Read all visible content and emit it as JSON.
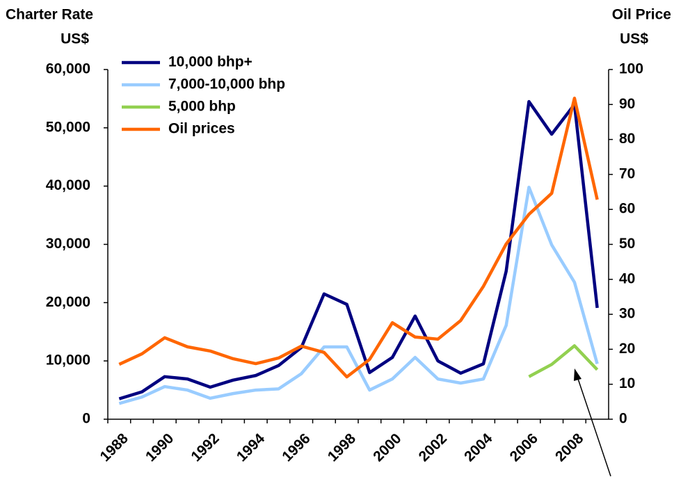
{
  "chart_data": {
    "type": "line",
    "y_title": [
      "Charter Rate",
      "US$"
    ],
    "y2_title": [
      "Oil Price",
      "US$"
    ],
    "categories": [
      "1988",
      null,
      "1990",
      null,
      "1992",
      null,
      "1994",
      null,
      "1996",
      null,
      "1998",
      null,
      "2000",
      null,
      "2002",
      null,
      "2004",
      null,
      "2006",
      null,
      "2008",
      null
    ],
    "series": [
      {
        "name": "10,000 bhp+",
        "color": "#000080",
        "values": [
          3500,
          4700,
          7300,
          6900,
          5500,
          6700,
          7500,
          9200,
          12300,
          21500,
          19700,
          8000,
          10600,
          17700,
          10000,
          7900,
          9500,
          25400,
          54500,
          48900,
          54000,
          19100
        ]
      },
      {
        "name": "7,000-10,000 bhp",
        "color": "#99ccff",
        "values": [
          2700,
          3800,
          5600,
          5000,
          3600,
          4400,
          5000,
          5200,
          7800,
          12400,
          12400,
          5000,
          6900,
          10600,
          6900,
          6200,
          6900,
          16100,
          39800,
          29900,
          23500,
          9500
        ]
      },
      {
        "name": "5,000 bhp",
        "color": "#92d050",
        "values": [
          null,
          null,
          null,
          null,
          null,
          null,
          null,
          null,
          null,
          null,
          null,
          null,
          null,
          null,
          null,
          null,
          null,
          null,
          7300,
          9400,
          12600,
          8500
        ]
      },
      {
        "name": "Oil prices",
        "color": "#ff6600",
        "axis": "y2",
        "values": [
          15.7,
          18.7,
          23.3,
          20.7,
          19.5,
          17.3,
          15.9,
          17.5,
          20.9,
          19.1,
          12.1,
          17.1,
          27.6,
          23.5,
          22.9,
          28.2,
          38.0,
          50.1,
          58.6,
          64.6,
          91.8,
          62.8
        ]
      }
    ],
    "ylim": [
      0,
      60000
    ],
    "yticks": [
      0,
      {
        "value": 10000,
        "label": "10,000"
      },
      {
        "value": 20000,
        "label": "20,000"
      },
      {
        "value": 30000,
        "label": "30,000"
      },
      {
        "value": 40000,
        "label": "40,000"
      },
      {
        "value": 50000,
        "label": "50,000"
      },
      {
        "value": 60000,
        "label": "60,000"
      }
    ],
    "y2lim": [
      0,
      100
    ],
    "y2ticks": [
      0,
      10,
      20,
      30,
      40,
      50,
      60,
      70,
      80,
      90,
      100
    ],
    "legend": "upper left"
  }
}
